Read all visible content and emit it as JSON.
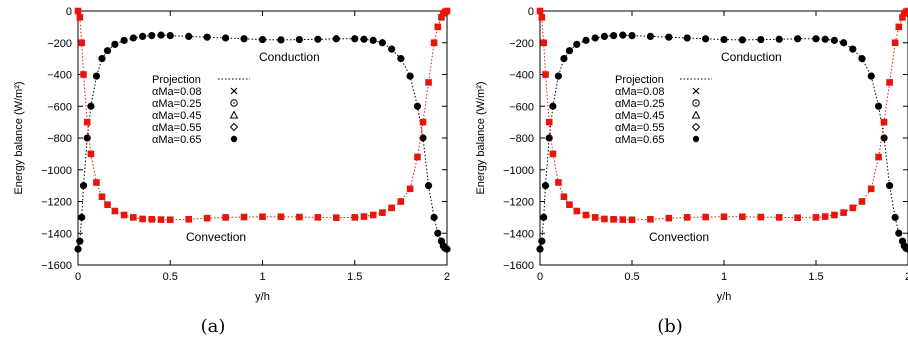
{
  "panels": [
    {
      "caption": "(a)",
      "chart_data": {
        "type": "scatter",
        "xlabel": "y/h",
        "ylabel": "Energy balance (W/m²)",
        "xlim": [
          0,
          2
        ],
        "ylim": [
          -1600,
          0
        ],
        "xticks": [
          "0",
          "0.5",
          "1",
          "1.5",
          "2"
        ],
        "yticks": [
          "0",
          "−200",
          "−400",
          "−600",
          "−800",
          "−1000",
          "−1200",
          "−1400",
          "−1600"
        ],
        "grid": false,
        "legend_placement": "center-left",
        "legend": [
          "Projection",
          "αMa=0.08",
          "αMa=0.25",
          "αMa=0.45",
          "αMa=0.55",
          "αMa=0.65"
        ],
        "annotations": [
          "Conduction",
          "Convection"
        ],
        "series": [
          {
            "name": "Conduction",
            "color": "#000000",
            "x": [
              0.0,
              0.01,
              0.02,
              0.03,
              0.05,
              0.07,
              0.1,
              0.13,
              0.16,
              0.2,
              0.25,
              0.3,
              0.35,
              0.4,
              0.45,
              0.5,
              0.6,
              0.7,
              0.8,
              0.9,
              1.0,
              1.1,
              1.2,
              1.3,
              1.4,
              1.5,
              1.55,
              1.6,
              1.65,
              1.7,
              1.75,
              1.8,
              1.84,
              1.87,
              1.9,
              1.93,
              1.95,
              1.97,
              1.98,
              1.99,
              2.0
            ],
            "y": [
              -1500,
              -1450,
              -1300,
              -1100,
              -800,
              -600,
              -410,
              -300,
              -250,
              -210,
              -185,
              -170,
              -160,
              -155,
              -152,
              -155,
              -160,
              -165,
              -170,
              -175,
              -180,
              -182,
              -180,
              -178,
              -175,
              -175,
              -178,
              -185,
              -200,
              -240,
              -300,
              -410,
              -600,
              -800,
              -1100,
              -1300,
              -1400,
              -1450,
              -1480,
              -1495,
              -1500
            ]
          },
          {
            "name": "Convection",
            "color": "#e8150c",
            "x": [
              0.0,
              0.01,
              0.02,
              0.03,
              0.05,
              0.07,
              0.1,
              0.13,
              0.16,
              0.2,
              0.25,
              0.3,
              0.35,
              0.4,
              0.45,
              0.5,
              0.6,
              0.7,
              0.8,
              0.9,
              1.0,
              1.1,
              1.2,
              1.3,
              1.4,
              1.5,
              1.55,
              1.6,
              1.65,
              1.7,
              1.75,
              1.8,
              1.84,
              1.87,
              1.9,
              1.93,
              1.95,
              1.97,
              1.98,
              1.99,
              2.0
            ],
            "y": [
              0,
              -40,
              -200,
              -400,
              -700,
              -900,
              -1080,
              -1170,
              -1220,
              -1260,
              -1285,
              -1300,
              -1310,
              -1312,
              -1314,
              -1315,
              -1312,
              -1305,
              -1300,
              -1298,
              -1296,
              -1296,
              -1298,
              -1300,
              -1302,
              -1300,
              -1295,
              -1285,
              -1270,
              -1240,
              -1200,
              -1120,
              -920,
              -700,
              -450,
              -200,
              -100,
              -40,
              -15,
              -5,
              0
            ]
          }
        ]
      }
    },
    {
      "caption": "(b)",
      "chart_data": {
        "type": "scatter",
        "xlabel": "y/h",
        "ylabel": "Energy balance (W/m²)",
        "xlim": [
          0,
          2
        ],
        "ylim": [
          -1600,
          0
        ],
        "xticks": [
          "0",
          "0.5",
          "1",
          "1.5",
          "2"
        ],
        "yticks": [
          "0",
          "−200",
          "−400",
          "−600",
          "−800",
          "−1000",
          "−1200",
          "−1400",
          "−1600"
        ],
        "grid": false,
        "legend_placement": "center-left",
        "legend": [
          "Projection",
          "αMa=0.08",
          "αMa=0.25",
          "αMa=0.45",
          "αMa=0.55",
          "αMa=0.65"
        ],
        "annotations": [
          "Conduction",
          "Convection"
        ],
        "series": [
          {
            "name": "Conduction",
            "color": "#000000",
            "x": [
              0.0,
              0.01,
              0.02,
              0.03,
              0.05,
              0.07,
              0.1,
              0.13,
              0.16,
              0.2,
              0.25,
              0.3,
              0.35,
              0.4,
              0.45,
              0.5,
              0.6,
              0.7,
              0.8,
              0.9,
              1.0,
              1.1,
              1.2,
              1.3,
              1.4,
              1.5,
              1.55,
              1.6,
              1.65,
              1.7,
              1.75,
              1.8,
              1.84,
              1.87,
              1.9,
              1.93,
              1.95,
              1.97,
              1.98,
              1.99,
              2.0
            ],
            "y": [
              -1500,
              -1450,
              -1300,
              -1100,
              -800,
              -600,
              -410,
              -300,
              -250,
              -210,
              -185,
              -170,
              -160,
              -155,
              -152,
              -155,
              -160,
              -165,
              -170,
              -175,
              -180,
              -182,
              -180,
              -178,
              -175,
              -175,
              -178,
              -185,
              -200,
              -240,
              -300,
              -410,
              -600,
              -800,
              -1100,
              -1300,
              -1400,
              -1450,
              -1480,
              -1495,
              -1500
            ]
          },
          {
            "name": "Convection",
            "color": "#e8150c",
            "x": [
              0.0,
              0.01,
              0.02,
              0.03,
              0.05,
              0.07,
              0.1,
              0.13,
              0.16,
              0.2,
              0.25,
              0.3,
              0.35,
              0.4,
              0.45,
              0.5,
              0.6,
              0.7,
              0.8,
              0.9,
              1.0,
              1.1,
              1.2,
              1.3,
              1.4,
              1.5,
              1.55,
              1.6,
              1.65,
              1.7,
              1.75,
              1.8,
              1.84,
              1.87,
              1.9,
              1.93,
              1.95,
              1.97,
              1.98,
              1.99,
              2.0
            ],
            "y": [
              0,
              -40,
              -200,
              -400,
              -700,
              -900,
              -1080,
              -1170,
              -1220,
              -1260,
              -1285,
              -1300,
              -1310,
              -1312,
              -1314,
              -1315,
              -1312,
              -1305,
              -1300,
              -1298,
              -1296,
              -1296,
              -1298,
              -1300,
              -1302,
              -1300,
              -1295,
              -1285,
              -1270,
              -1240,
              -1200,
              -1120,
              -920,
              -700,
              -450,
              -200,
              -100,
              -40,
              -15,
              -5,
              0
            ]
          }
        ]
      }
    }
  ]
}
